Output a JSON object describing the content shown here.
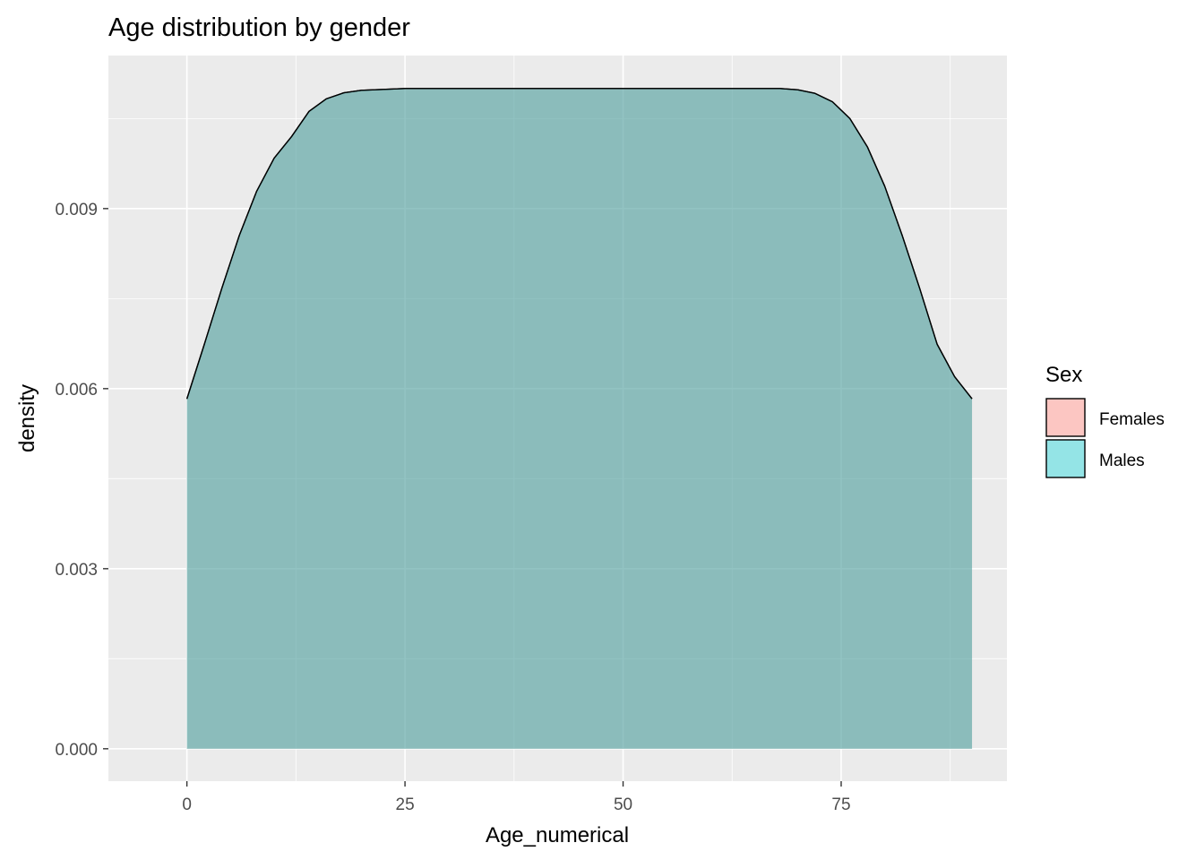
{
  "chart_data": {
    "type": "area",
    "title": "Age distribution by gender",
    "xlabel": "Age_numerical",
    "ylabel": "density",
    "xlim": [
      -9,
      94
    ],
    "ylim": [
      -0.00054,
      0.01155
    ],
    "x_ticks": [
      0,
      25,
      50,
      75
    ],
    "y_ticks": [
      0.0,
      0.003,
      0.006,
      0.009
    ],
    "x_tick_labels": [
      "0",
      "25",
      "50",
      "75"
    ],
    "y_tick_labels": [
      "0.000",
      "0.003",
      "0.006",
      "0.009"
    ],
    "grid": true,
    "legend": {
      "title": "Sex",
      "position": "right",
      "entries": [
        {
          "label": "Females",
          "color": "#F8766D"
        },
        {
          "label": "Males",
          "color": "#00BFC4"
        }
      ]
    },
    "series": [
      {
        "name": "Females",
        "color": "#F8766D",
        "x": [
          0,
          2,
          4,
          6,
          8,
          10,
          12,
          14,
          16,
          18,
          20,
          25,
          30,
          40,
          50,
          60,
          68,
          70,
          72,
          74,
          76,
          78,
          80,
          82,
          84,
          86,
          88,
          90
        ],
        "y": [
          0.00583,
          0.00674,
          0.00767,
          0.00855,
          0.00929,
          0.00984,
          0.0102,
          0.01062,
          0.01083,
          0.01093,
          0.01097,
          0.011,
          0.011,
          0.011,
          0.011,
          0.011,
          0.011,
          0.01098,
          0.01092,
          0.01078,
          0.0105,
          0.01003,
          0.00937,
          0.00855,
          0.00767,
          0.00674,
          0.0062,
          0.00583
        ]
      },
      {
        "name": "Males",
        "color": "#00BFC4",
        "x": [
          0,
          2,
          4,
          6,
          8,
          10,
          12,
          14,
          16,
          18,
          20,
          25,
          30,
          40,
          50,
          60,
          68,
          70,
          72,
          74,
          76,
          78,
          80,
          82,
          84,
          86,
          88,
          90
        ],
        "y": [
          0.00583,
          0.00674,
          0.00767,
          0.00855,
          0.00929,
          0.00984,
          0.0102,
          0.01062,
          0.01083,
          0.01093,
          0.01097,
          0.011,
          0.011,
          0.011,
          0.011,
          0.011,
          0.011,
          0.01098,
          0.01092,
          0.01078,
          0.0105,
          0.01003,
          0.00937,
          0.00855,
          0.00767,
          0.00674,
          0.0062,
          0.00583
        ]
      }
    ]
  },
  "colors": {
    "panel_background": "#EBEBEB",
    "grid_major": "#FFFFFF",
    "density_outline": "#000000",
    "blended_fill": "#93BCBD"
  }
}
